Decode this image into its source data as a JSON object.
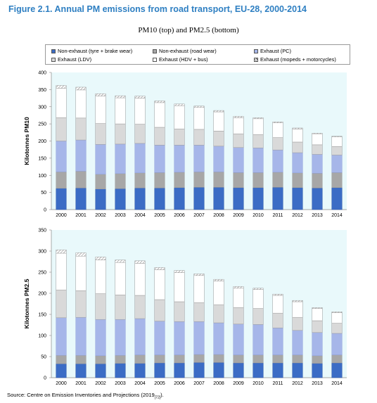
{
  "figure": {
    "title": "Figure 2.1. Annual PM emissions from road transport, EU-28, 2000-2014",
    "subtitle": "PM10 (top) and PM2.5 (bottom)",
    "source_text": "Source: Centre on Emission Inventories and Projections (2019",
    "source_ref": "[72]",
    "source_end": ")."
  },
  "legend": [
    {
      "key": "nonexhaust_tyre",
      "label": "Non-exhaust (tyre + brake wear)",
      "color": "#3b6cc5"
    },
    {
      "key": "nonexhaust_road",
      "label": "Non-exhaust (road wear)",
      "color": "#a7a7a7"
    },
    {
      "key": "exhaust_pc",
      "label": "Exhaust (PC)",
      "color": "#a6b6e9"
    },
    {
      "key": "exhaust_ldv",
      "label": "Exhaust (LDV)",
      "color": "#d9d9d9"
    },
    {
      "key": "exhaust_hdv",
      "label": "Exhaust (HDV + bus)",
      "color": "#ffffff"
    },
    {
      "key": "exhaust_moped",
      "label": "Exhaust (mopeds + motorcycles)",
      "color": "#ffffff",
      "pattern": "hatch"
    }
  ],
  "chart_data": [
    {
      "type": "bar",
      "stacked": true,
      "panel": "top",
      "ylabel": "Kilotonnes PM10",
      "ylim": [
        0,
        400
      ],
      "yticks": [
        0,
        50,
        100,
        150,
        200,
        250,
        300,
        350,
        400
      ],
      "categories": [
        "2000",
        "2001",
        "2002",
        "2003",
        "2004",
        "2005",
        "2006",
        "2007",
        "2008",
        "2009",
        "2010",
        "2011",
        "2012",
        "2013",
        "2014"
      ],
      "series": [
        {
          "name": "Non-exhaust (tyre + brake wear)",
          "values": [
            62,
            63,
            60,
            61,
            63,
            63,
            64,
            65,
            65,
            64,
            64,
            65,
            64,
            63,
            64
          ]
        },
        {
          "name": "Non-exhaust (road wear)",
          "values": [
            48,
            49,
            43,
            44,
            44,
            45,
            45,
            45,
            45,
            44,
            44,
            44,
            43,
            43,
            44
          ]
        },
        {
          "name": "Exhaust (PC)",
          "values": [
            90,
            91,
            87,
            86,
            86,
            80,
            79,
            78,
            75,
            73,
            72,
            65,
            59,
            55,
            51
          ]
        },
        {
          "name": "Exhaust (LDV)",
          "values": [
            68,
            64,
            61,
            59,
            56,
            52,
            47,
            46,
            44,
            40,
            39,
            36,
            31,
            28,
            25
          ]
        },
        {
          "name": "Exhaust (HDV + bus)",
          "values": [
            86,
            82,
            80,
            76,
            76,
            72,
            68,
            64,
            56,
            47,
            46,
            43,
            38,
            32,
            28
          ]
        },
        {
          "name": "Exhaust (mopeds + motorcycles)",
          "values": [
            8,
            8,
            7,
            6,
            6,
            5,
            5,
            4,
            4,
            4,
            3,
            3,
            3,
            2,
            2
          ]
        }
      ]
    },
    {
      "type": "bar",
      "stacked": true,
      "panel": "bottom",
      "ylabel": "Kilotonnes PM2.5",
      "ylim": [
        0,
        350
      ],
      "yticks": [
        0,
        50,
        100,
        150,
        200,
        250,
        300,
        350
      ],
      "categories": [
        "2000",
        "2001",
        "2002",
        "2003",
        "2004",
        "2005",
        "2006",
        "2007",
        "2008",
        "2009",
        "2010",
        "2011",
        "2012",
        "2013",
        "2014"
      ],
      "series": [
        {
          "name": "Non-exhaust (tyre + brake wear)",
          "values": [
            33,
            33,
            33,
            34,
            34,
            35,
            35,
            36,
            36,
            35,
            35,
            35,
            35,
            34,
            35
          ]
        },
        {
          "name": "Non-exhaust (road wear)",
          "values": [
            20,
            20,
            19,
            19,
            20,
            19,
            19,
            19,
            19,
            19,
            19,
            19,
            19,
            18,
            19
          ]
        },
        {
          "name": "Exhaust (PC)",
          "values": [
            89,
            90,
            86,
            85,
            86,
            80,
            79,
            78,
            75,
            73,
            72,
            64,
            58,
            55,
            51
          ]
        },
        {
          "name": "Exhaust (LDV)",
          "values": [
            66,
            63,
            61,
            58,
            55,
            51,
            47,
            45,
            43,
            39,
            38,
            35,
            31,
            28,
            24
          ]
        },
        {
          "name": "Exhaust (HDV + bus)",
          "values": [
            87,
            82,
            80,
            77,
            76,
            71,
            69,
            64,
            56,
            46,
            45,
            42,
            37,
            29,
            25
          ]
        },
        {
          "name": "Exhaust (mopeds + motorcycles)",
          "values": [
            8,
            8,
            7,
            6,
            6,
            5,
            5,
            4,
            4,
            4,
            3,
            3,
            3,
            2,
            2
          ]
        }
      ]
    }
  ]
}
